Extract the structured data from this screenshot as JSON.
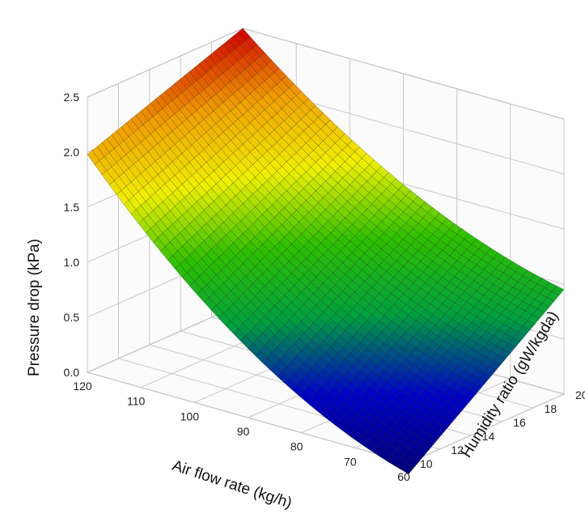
{
  "chart_data": {
    "type": "surface3d",
    "title": "",
    "xlabel": "Air flow rate (kg/h)",
    "ylabel": "Humidity ratio (gW/kgda)",
    "zlabel": "Pressure drop (kPa)",
    "x_ticks": [
      "120",
      "110",
      "100",
      "90",
      "80",
      "70",
      "60"
    ],
    "y_ticks": [
      "10",
      "12",
      "14",
      "16",
      "18",
      "20"
    ],
    "z_ticks": [
      "0.0",
      "0.5",
      "1.0",
      "1.5",
      "2.0",
      "2.5"
    ],
    "xlim": [
      60,
      120
    ],
    "ylim": [
      10,
      20
    ],
    "zlim": [
      0.0,
      2.5
    ],
    "grid": true,
    "colormap": [
      "#00007a",
      "#0000c8",
      "#00a040",
      "#2ec000",
      "#f0f000",
      "#f0a000",
      "#d00000"
    ],
    "surface_corners": [
      {
        "x": 120,
        "y": 10,
        "z": 1.98
      },
      {
        "x": 120,
        "y": 20,
        "z": 2.5
      },
      {
        "x": 60,
        "y": 10,
        "z": -0.1
      },
      {
        "x": 60,
        "y": 20,
        "z": 0.95
      }
    ]
  }
}
